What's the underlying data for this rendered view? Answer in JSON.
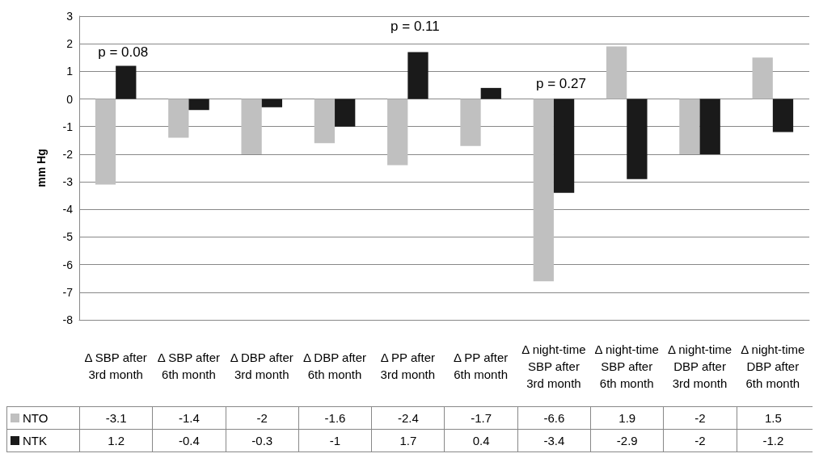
{
  "chart_data": {
    "type": "bar",
    "ylabel": "mm Hg",
    "categories": [
      "Δ SBP after 3rd month",
      "Δ SBP after 6th month",
      "Δ DBP after 3rd month",
      "Δ DBP after 6th month",
      "Δ PP after 3rd month",
      "Δ PP after 6th month",
      "Δ night-time SBP after 3rd month",
      "Δ night-time SBP after 6th month",
      "Δ night-time DBP after 3rd month",
      "Δ night-time DBP after 6th month"
    ],
    "series": [
      {
        "name": "NTO",
        "color": "#c0c0c0",
        "values": [
          -3.1,
          -1.4,
          -2,
          -1.6,
          -2.4,
          -1.7,
          -6.6,
          1.9,
          -2,
          1.5
        ]
      },
      {
        "name": "NTK",
        "color": "#1a1a1a",
        "values": [
          1.2,
          -0.4,
          -0.3,
          -1,
          1.7,
          0.4,
          -3.4,
          -2.9,
          -2,
          -1.2
        ]
      }
    ],
    "ylim": [
      -8,
      3
    ],
    "yticks": [
      -8,
      -7,
      -6,
      -5,
      -4,
      -3,
      -2,
      -1,
      0,
      1,
      2,
      3
    ],
    "grid": "y",
    "legend": "bottom left",
    "data_labels": true,
    "annotations": [
      "p = 0.08",
      "p = 0.11",
      "p = 0.27"
    ]
  }
}
